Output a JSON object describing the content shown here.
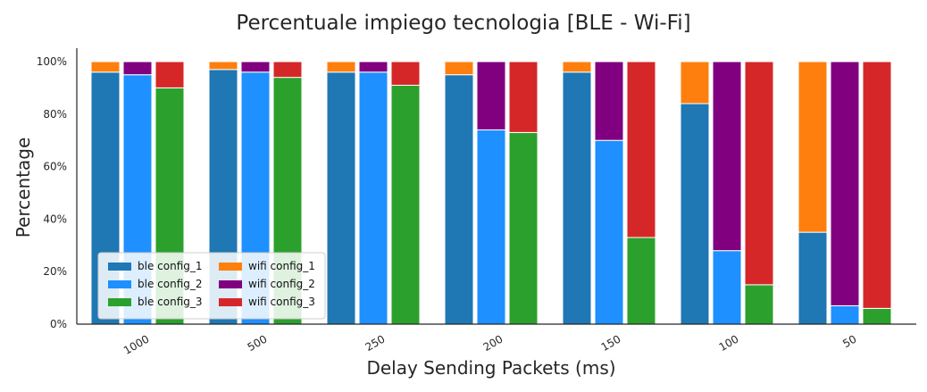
{
  "chart_data": {
    "type": "bar",
    "title": "Percentuale impiego tecnologia [BLE - Wi-Fi]",
    "xlabel": "Delay Sending Packets (ms)",
    "ylabel": "Percentage",
    "categories": [
      "1000",
      "500",
      "250",
      "200",
      "150",
      "100",
      "50"
    ],
    "yticks": [
      "0%",
      "20%",
      "40%",
      "60%",
      "80%",
      "100%"
    ],
    "ylim": [
      0,
      100
    ],
    "grid": false,
    "stacked": true,
    "legend_position": "lower-left",
    "series": [
      {
        "name": "ble config_1",
        "config": 1,
        "stack": "ble",
        "color": "#1f77b4",
        "values": [
          96,
          97,
          96,
          95,
          96,
          84,
          35
        ]
      },
      {
        "name": "ble config_2",
        "config": 2,
        "stack": "ble",
        "color": "#1e90ff",
        "values": [
          95,
          96,
          96,
          74,
          70,
          28,
          7
        ]
      },
      {
        "name": "ble config_3",
        "config": 3,
        "stack": "ble",
        "color": "#2ca02c",
        "values": [
          90,
          94,
          91,
          73,
          33,
          15,
          6
        ]
      },
      {
        "name": "wifi config_1",
        "config": 1,
        "stack": "wifi",
        "color": "#ff7f0e",
        "values": [
          4,
          3,
          4,
          5,
          4,
          16,
          65
        ]
      },
      {
        "name": "wifi config_2",
        "config": 2,
        "stack": "wifi",
        "color": "#800080",
        "values": [
          5,
          4,
          4,
          26,
          30,
          72,
          93
        ]
      },
      {
        "name": "wifi config_3",
        "config": 3,
        "stack": "wifi",
        "color": "#d62728",
        "values": [
          10,
          6,
          9,
          27,
          67,
          85,
          94
        ]
      }
    ]
  }
}
